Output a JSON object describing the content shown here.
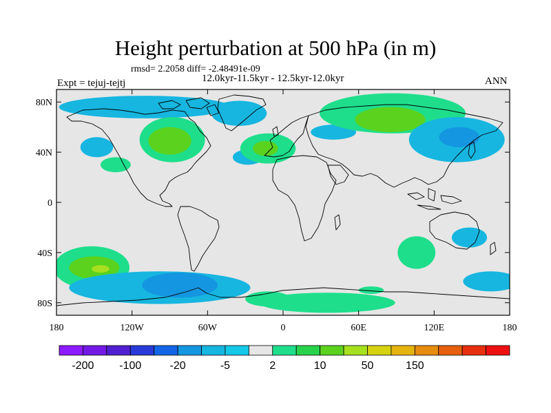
{
  "title": "Height perturbation at 500 hPa (in m)",
  "stats": "rmsd= 2.2058 diff= -2.48491e-09",
  "period": "12.0kyr-11.5kyr - 12.5kyr-12.0kyr",
  "experiment": "Expt = tejuj-tejtj",
  "season": "ANN",
  "map": {
    "projection": "cylindrical-equidistant",
    "lon_range": [
      -180,
      180
    ],
    "lat_range": [
      -90,
      90
    ],
    "background_color": "#e6e6e6",
    "lon_ticks": [
      {
        "value": -180,
        "label": "180"
      },
      {
        "value": -120,
        "label": "120W"
      },
      {
        "value": -60,
        "label": "60W"
      },
      {
        "value": 0,
        "label": "0"
      },
      {
        "value": 60,
        "label": "60E"
      },
      {
        "value": 120,
        "label": "120E"
      },
      {
        "value": 180,
        "label": "180"
      }
    ],
    "lat_ticks": [
      {
        "value": 80,
        "label": "80N"
      },
      {
        "value": 40,
        "label": "40N"
      },
      {
        "value": 0,
        "label": "0"
      },
      {
        "value": -40,
        "label": "40S"
      },
      {
        "value": -80,
        "label": "80S"
      }
    ]
  },
  "colorbar": {
    "colors": [
      "#8c1cff",
      "#7219e6",
      "#5020d0",
      "#2a3ad8",
      "#1466e6",
      "#1496e0",
      "#16b6e0",
      "#14c8e8",
      "#e6e6e6",
      "#1ede8c",
      "#28d24a",
      "#5ad21e",
      "#a6e01e",
      "#d6d20e",
      "#e6b40e",
      "#e68c0e",
      "#e6600e",
      "#e6300e",
      "#ee1010"
    ],
    "labels": [
      {
        "after_box": 1,
        "text": "-200"
      },
      {
        "after_box": 3,
        "text": "-100"
      },
      {
        "after_box": 5,
        "text": "-20"
      },
      {
        "after_box": 7,
        "text": "-5"
      },
      {
        "after_box": 9,
        "text": "2"
      },
      {
        "after_box": 11,
        "text": "10"
      },
      {
        "after_box": 13,
        "text": "50"
      },
      {
        "after_box": 15,
        "text": "150"
      }
    ]
  },
  "anomaly_regions": [
    {
      "name": "arctic-canada-neg",
      "color": "#16b6e0",
      "lon": -110,
      "lat": 76,
      "rlon": 68,
      "rlat": 9
    },
    {
      "name": "greenland-neg",
      "color": "#16b6e0",
      "lon": -35,
      "lat": 71,
      "rlon": 22,
      "rlat": 10
    },
    {
      "name": "north-america-pos",
      "color": "#1ede8c",
      "lon": -88,
      "lat": 50,
      "rlon": 26,
      "rlat": 18
    },
    {
      "name": "great-lakes-pos-core",
      "color": "#5ad21e",
      "lon": -90,
      "lat": 49,
      "rlon": 17,
      "rlat": 11
    },
    {
      "name": "west-atlantic-pos",
      "color": "#1ede8c",
      "lon": -133,
      "lat": 30,
      "rlon": 12,
      "rlat": 6
    },
    {
      "name": "north-pacific-neg",
      "color": "#16b6e0",
      "lon": -148,
      "lat": 44,
      "rlon": 13,
      "rlat": 8
    },
    {
      "name": "west-atlantic-neg",
      "color": "#16b6e0",
      "lon": -28,
      "lat": 36,
      "rlon": 12,
      "rlat": 6
    },
    {
      "name": "europe-pos",
      "color": "#1ede8c",
      "lon": -12,
      "lat": 43,
      "rlon": 22,
      "rlat": 12
    },
    {
      "name": "europe-pos-core",
      "color": "#5ad21e",
      "lon": -14,
      "lat": 43,
      "rlon": 10,
      "rlat": 6
    },
    {
      "name": "east-atlantic-neg",
      "color": "#16b6e0",
      "lon": 40,
      "lat": 56,
      "rlon": 18,
      "rlat": 6
    },
    {
      "name": "siberia-pos",
      "color": "#1ede8c",
      "lon": 87,
      "lat": 71,
      "rlon": 58,
      "rlat": 16
    },
    {
      "name": "siberia-pos-core",
      "color": "#5ad21e",
      "lon": 85,
      "lat": 66,
      "rlon": 28,
      "rlat": 10
    },
    {
      "name": "north-pacific-east-neg",
      "color": "#16b6e0",
      "lon": 138,
      "lat": 50,
      "rlon": 38,
      "rlat": 18
    },
    {
      "name": "japan-neg-core",
      "color": "#1496e0",
      "lon": 140,
      "lat": 52,
      "rlon": 16,
      "rlat": 8
    },
    {
      "name": "east-africa-neg",
      "color": "#16b6e0",
      "lon": 148,
      "lat": -28,
      "rlon": 14,
      "rlat": 8
    },
    {
      "name": "indian-ocean-pos",
      "color": "#1ede8c",
      "lon": 106,
      "lat": -40,
      "rlon": 15,
      "rlat": 13
    },
    {
      "name": "southeast-pacific-pos",
      "color": "#1ede8c",
      "lon": -152,
      "lat": -52,
      "rlon": 30,
      "rlat": 17
    },
    {
      "name": "southeast-pacific-core",
      "color": "#5ad21e",
      "lon": -150,
      "lat": -52,
      "rlon": 20,
      "rlat": 9
    },
    {
      "name": "south-pacific-core-yellow",
      "color": "#a6e01e",
      "lon": -145,
      "lat": -53,
      "rlon": 7,
      "rlat": 3
    },
    {
      "name": "southern-ocean-neg",
      "color": "#16b6e0",
      "lon": -98,
      "lat": -68,
      "rlon": 72,
      "rlat": 13
    },
    {
      "name": "drake-passage-neg-core",
      "color": "#1496e0",
      "lon": -82,
      "lat": -66,
      "rlon": 30,
      "rlat": 10
    },
    {
      "name": "west-pacific-south-neg",
      "color": "#16b6e0",
      "lon": 165,
      "lat": -63,
      "rlon": 22,
      "rlat": 8
    },
    {
      "name": "antarctica-pos",
      "color": "#1ede8c",
      "lon": 35,
      "lat": -80,
      "rlon": 54,
      "rlat": 8
    },
    {
      "name": "weddell-pos",
      "color": "#1ede8c",
      "lon": -12,
      "lat": -77,
      "rlon": 18,
      "rlat": 6
    },
    {
      "name": "indian-south-small-pos",
      "color": "#1ede8c",
      "lon": 70,
      "lat": -70,
      "rlon": 10,
      "rlat": 3
    }
  ]
}
